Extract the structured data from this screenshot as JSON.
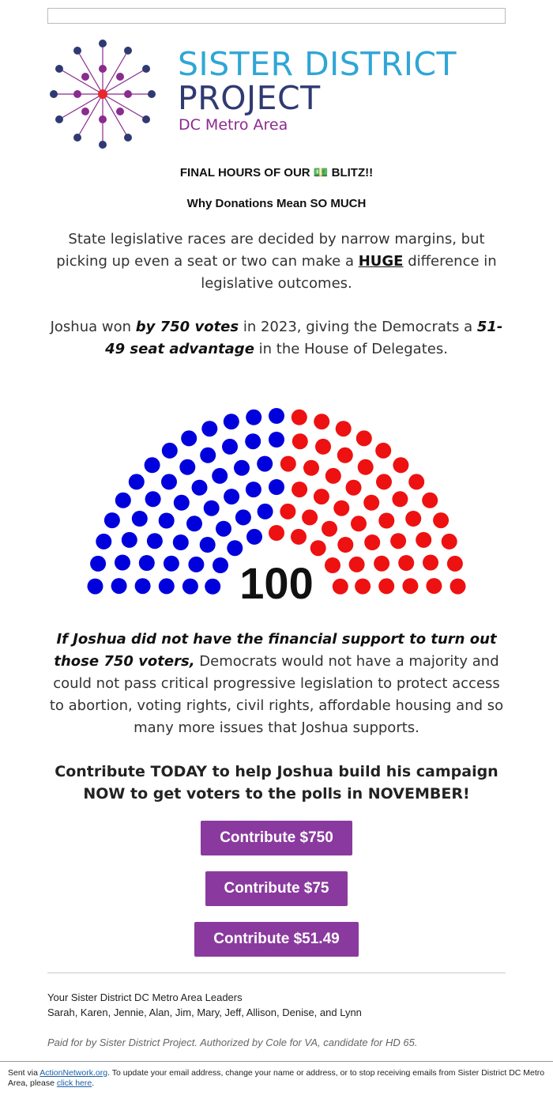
{
  "header": {
    "logo_line1": "SISTER DISTRICT",
    "logo_line2": "PROJECT",
    "logo_line3": "DC Metro Area"
  },
  "headline1": "FINAL HOURS OF OUR 💵 BLITZ!!",
  "headline2": "Why Donations Mean SO MUCH",
  "para1": {
    "before": "State legislative races are decided by narrow margins, but picking up even a seat or two can make a ",
    "emph": "HUGE",
    "after": " difference in legislative outcomes."
  },
  "para2": {
    "t1": "Joshua won ",
    "b1": "by 750 votes",
    "t2": " in 2023, giving the Democrats a ",
    "b2": "51-49 seat advantage",
    "t3": " in the House of Delegates."
  },
  "chart_data": {
    "type": "parliament",
    "total_label": "100",
    "series": [
      {
        "color": "#0000dd",
        "values": [
          51
        ]
      },
      {
        "color": "#ee1111",
        "values": [
          49
        ]
      }
    ]
  },
  "para3": {
    "bold_italic": "If Joshua did not have the financial support to turn out those 750 voters,",
    "rest": " Democrats would not have a majority and could not pass critical progressive legislation to protect access to abortion, voting rights, civil rights, affordable housing and so many more issues that Joshua supports."
  },
  "para4": "Contribute TODAY to help Joshua build his campaign NOW to get voters to the polls in NOVEMBER!",
  "buttons": {
    "b750": "Contribute $750",
    "b75": "Contribute $75",
    "b5149": "Contribute $51.49"
  },
  "leaders": {
    "title": "Your Sister District DC Metro Area Leaders",
    "names": "Sarah, Karen, Jennie, Alan, Jim, Mary, Jeff, Allison, Denise, and Lynn"
  },
  "paid_for": "Paid for by Sister District Project. Authorized by Cole for VA, candidate for HD 65.",
  "footer": {
    "sent_via": "Sent via ",
    "link1": "ActionNetwork.org",
    "middle": ". To update your email address, change your name or address, or to stop receiving emails from Sister District DC Metro Area, please ",
    "link2": "click here",
    "end": "."
  },
  "colors": {
    "purple_button": "#8a3a9e",
    "logo_blue": "#2fa6d6",
    "logo_navy": "#2f3a72",
    "logo_purple": "#8a2b8e",
    "dem_blue": "#0000dd",
    "rep_red": "#ee1111"
  }
}
